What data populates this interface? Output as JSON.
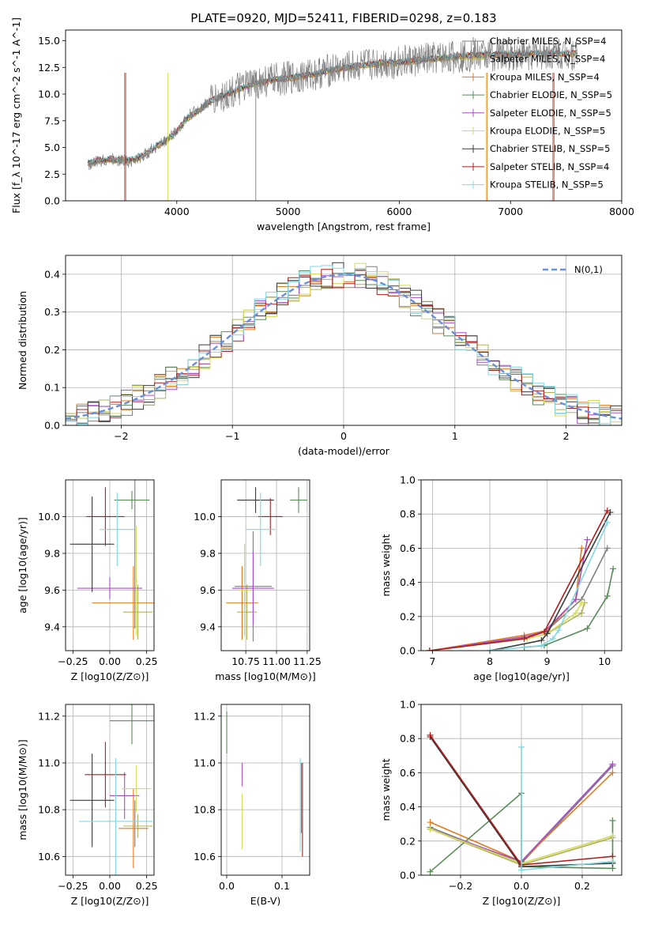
{
  "figure_title": "PLATE=0920, MJD=52411, FIBERID=0298, z=0.183",
  "series_styles": [
    {
      "name": "Chabrier MILES, N_SSP=4",
      "color": "#7f7f7f"
    },
    {
      "name": "Salpeter MILES, N_SSP=4",
      "color": "#b0b05a"
    },
    {
      "name": "Kroupa MILES, N_SSP=4",
      "color": "#e47a1f"
    },
    {
      "name": "Chabrier ELODIE, N_SSP=5",
      "color": "#5a8a5a"
    },
    {
      "name": "Salpeter ELODIE, N_SSP=5",
      "color": "#a64dc8"
    },
    {
      "name": "Kroupa ELODIE, N_SSP=5",
      "color": "#d4dc5a"
    },
    {
      "name": "Chabrier STELIB, N_SSP=5",
      "color": "#3a3a3a"
    },
    {
      "name": "Salpeter STELIB, N_SSP=4",
      "color": "#b01c1c"
    },
    {
      "name": "Kroupa STELIB, N_SSP=5",
      "color": "#7fd8e0"
    }
  ],
  "chart_data": [
    {
      "id": "spectrum",
      "type": "line",
      "title": "PLATE=0920, MJD=52411, FIBERID=0298, z=0.183",
      "xlabel": "wavelength [Angstrom, rest frame]",
      "ylabel": "Flux [f_λ 10^-17 erg cm^-2 s^-1 A^-1]",
      "xlim": [
        3000,
        8000
      ],
      "ylim": [
        0,
        16
      ],
      "xticks": [
        4000,
        5000,
        6000,
        7000,
        8000
      ],
      "yticks": [
        0.0,
        2.5,
        5.0,
        7.5,
        10.0,
        12.5,
        15.0
      ],
      "legend_position": "top-right",
      "grid": false,
      "x": [
        3200,
        3300,
        3400,
        3500,
        3600,
        3700,
        3800,
        3900,
        4000,
        4100,
        4200,
        4300,
        4400,
        4500,
        4600,
        4700,
        4800,
        4900,
        5000,
        5200,
        5400,
        5600,
        5800,
        6000,
        6200,
        6400,
        6600,
        6800,
        7000,
        7200,
        7400,
        7600
      ],
      "data_flux": [
        3.4,
        3.7,
        3.9,
        3.8,
        3.7,
        4.2,
        5.0,
        5.6,
        6.6,
        7.9,
        8.6,
        9.4,
        9.7,
        10.2,
        10.6,
        11.0,
        11.2,
        11.4,
        11.5,
        11.8,
        12.3,
        12.6,
        12.9,
        13.0,
        13.2,
        13.4,
        13.6,
        13.7,
        13.7,
        13.8,
        13.8,
        13.8
      ],
      "model_flux": [
        3.5,
        3.8,
        3.9,
        3.8,
        3.8,
        4.3,
        5.0,
        5.6,
        6.5,
        7.8,
        8.5,
        9.3,
        9.8,
        10.2,
        10.6,
        11.0,
        11.2,
        11.4,
        11.5,
        11.8,
        12.3,
        12.6,
        12.9,
        13.0,
        13.2,
        13.4,
        13.6,
        13.7,
        13.7,
        13.8,
        13.8,
        13.8
      ]
    },
    {
      "id": "residual_hist",
      "type": "line",
      "xlabel": "(data-model)/error",
      "ylabel": "Normed distribution",
      "xlim": [
        -2.5,
        2.5
      ],
      "ylim": [
        0,
        0.45
      ],
      "xticks": [
        -2,
        -1,
        0,
        1,
        2
      ],
      "yticks": [
        0.0,
        0.1,
        0.2,
        0.3,
        0.4
      ],
      "grid": true,
      "legend_position": "top-right",
      "reference_label": "N(0,1)",
      "reference_color": "#6a8fd8"
    },
    {
      "id": "age_vs_Z",
      "type": "scatter",
      "xlabel": "Z [log10(Z/Z⊙)]",
      "ylabel": "age  [log10(age/yr)]",
      "xlim": [
        -0.3,
        0.3
      ],
      "ylim": [
        9.27,
        10.2
      ],
      "xticks": [
        -0.25,
        0.0,
        0.25
      ],
      "xticklabels": [
        "−0.25",
        "0.00",
        "0.25"
      ],
      "yticks": [
        9.4,
        9.6,
        9.8,
        10.0
      ],
      "grid": true,
      "points": [
        {
          "s": 0,
          "x": 0.17,
          "y": 9.84,
          "xerr": 0.0,
          "yerr": 0.45
        },
        {
          "s": 1,
          "x": 0.19,
          "y": 9.48,
          "xerr": 0.1,
          "yerr": 0.15
        },
        {
          "s": 2,
          "x": 0.16,
          "y": 9.53,
          "xerr": 0.28,
          "yerr": 0.2
        },
        {
          "s": 3,
          "x": 0.15,
          "y": 10.09,
          "xerr": 0.12,
          "yerr": 0.05
        },
        {
          "s": 4,
          "x": 0.0,
          "y": 9.61,
          "xerr": 0.22,
          "yerr": 0.06
        },
        {
          "s": 5,
          "x": 0.18,
          "y": 9.65,
          "xerr": 0.01,
          "yerr": 0.3
        },
        {
          "s": 6,
          "x": -0.12,
          "y": 9.85,
          "xerr": 0.15,
          "yerr": 0.26
        },
        {
          "s": 7,
          "x": -0.03,
          "y": 10.0,
          "xerr": 0.13,
          "yerr": 0.16
        },
        {
          "s": 8,
          "x": 0.05,
          "y": 9.93,
          "xerr": 0.12,
          "yerr": 0.2
        }
      ]
    },
    {
      "id": "age_vs_mass",
      "type": "scatter",
      "xlabel": "mass [log10(M/M⊙)]",
      "ylabel": "",
      "xlim": [
        10.55,
        11.27
      ],
      "ylim": [
        9.27,
        10.2
      ],
      "xticks": [
        10.75,
        11.0,
        11.25
      ],
      "xticklabels": [
        "10.75",
        "11.00",
        "11.25"
      ],
      "yticks": [
        9.4,
        9.6,
        9.8,
        10.0
      ],
      "grid": true,
      "points": [
        {
          "s": 0,
          "x": 10.81,
          "y": 9.62,
          "xerr": 0.15,
          "yerr": 0.3
        },
        {
          "s": 1,
          "x": 10.76,
          "y": 9.48,
          "xerr": 0.08,
          "yerr": 0.15
        },
        {
          "s": 2,
          "x": 10.72,
          "y": 9.53,
          "xerr": 0.13,
          "yerr": 0.2
        },
        {
          "s": 3,
          "x": 11.18,
          "y": 10.09,
          "xerr": 0.07,
          "yerr": 0.07
        },
        {
          "s": 4,
          "x": 10.81,
          "y": 9.61,
          "xerr": 0.17,
          "yerr": 0.2
        },
        {
          "s": 5,
          "x": 10.74,
          "y": 9.6,
          "xerr": 0.05,
          "yerr": 0.25
        },
        {
          "s": 6,
          "x": 10.83,
          "y": 10.09,
          "xerr": 0.15,
          "yerr": 0.07
        },
        {
          "s": 7,
          "x": 10.95,
          "y": 10.0,
          "xerr": 0.1,
          "yerr": 0.1
        },
        {
          "s": 8,
          "x": 10.87,
          "y": 9.93,
          "xerr": 0.12,
          "yerr": 0.2
        }
      ]
    },
    {
      "id": "massweight_vs_age",
      "type": "line",
      "xlabel": "age  [log10(age/yr)]",
      "ylabel": "mass weight",
      "xlim": [
        6.8,
        10.3
      ],
      "ylim": [
        0,
        1.0
      ],
      "xticks": [
        7,
        8,
        9,
        10
      ],
      "yticks": [
        0.0,
        0.2,
        0.4,
        0.6,
        0.8,
        1.0
      ],
      "grid": true,
      "series": [
        {
          "s": 0,
          "x": [
            6.95,
            8.65,
            9.0,
            9.6,
            10.05
          ],
          "y": [
            0.0,
            0.08,
            0.12,
            0.3,
            0.6
          ]
        },
        {
          "s": 1,
          "x": [
            6.95,
            8.65,
            9.0,
            9.6,
            9.65
          ],
          "y": [
            0.0,
            0.07,
            0.1,
            0.22,
            0.28
          ]
        },
        {
          "s": 2,
          "x": [
            6.95,
            8.6,
            9.0,
            9.5,
            9.6
          ],
          "y": [
            0.0,
            0.09,
            0.12,
            0.3,
            0.6
          ]
        },
        {
          "s": 3,
          "x": [
            8.6,
            8.95,
            9.7,
            10.05,
            10.15
          ],
          "y": [
            0.02,
            0.03,
            0.13,
            0.32,
            0.48
          ]
        },
        {
          "s": 4,
          "x": [
            6.95,
            8.6,
            8.95,
            9.5,
            9.7
          ],
          "y": [
            0.0,
            0.08,
            0.11,
            0.3,
            0.65
          ]
        },
        {
          "s": 5,
          "x": [
            6.95,
            8.65,
            9.0,
            9.5,
            9.6
          ],
          "y": [
            0.0,
            0.07,
            0.1,
            0.22,
            0.28
          ]
        },
        {
          "s": 6,
          "x": [
            8.0,
            8.9,
            9.0,
            10.1
          ],
          "y": [
            0.0,
            0.06,
            0.1,
            0.81
          ]
        },
        {
          "s": 7,
          "x": [
            6.95,
            8.6,
            8.95,
            10.05
          ],
          "y": [
            0.0,
            0.07,
            0.11,
            0.82
          ]
        },
        {
          "s": 8,
          "x": [
            8.0,
            8.9,
            9.1,
            9.2,
            10.05
          ],
          "y": [
            0.0,
            0.03,
            0.07,
            0.12,
            0.75
          ]
        }
      ]
    },
    {
      "id": "mass_vs_Z",
      "type": "scatter",
      "xlabel": "Z [log10(Z/Z⊙)]",
      "ylabel": "mass [log10(M/M⊙)]",
      "xlim": [
        -0.3,
        0.3
      ],
      "ylim": [
        10.52,
        11.25
      ],
      "xticks": [
        -0.25,
        0.0,
        0.25
      ],
      "xticklabels": [
        "−0.25",
        "0.00",
        "0.25"
      ],
      "yticks": [
        10.6,
        10.8,
        11.0,
        11.2
      ],
      "grid": true,
      "points": [
        {
          "s": 0,
          "x": 0.17,
          "y": 10.74,
          "xerr": 0.0,
          "yerr": 0.1
        },
        {
          "s": 1,
          "x": 0.19,
          "y": 10.73,
          "xerr": 0.1,
          "yerr": 0.05
        },
        {
          "s": 2,
          "x": 0.16,
          "y": 10.72,
          "xerr": 0.1,
          "yerr": 0.17
        },
        {
          "s": 3,
          "x": 0.15,
          "y": 11.18,
          "xerr": 0.15,
          "yerr": 0.1
        },
        {
          "s": 4,
          "x": 0.1,
          "y": 10.86,
          "xerr": 0.1,
          "yerr": 0.1
        },
        {
          "s": 5,
          "x": 0.18,
          "y": 10.89,
          "xerr": 0.1,
          "yerr": 0.1
        },
        {
          "s": 6,
          "x": -0.12,
          "y": 10.84,
          "xerr": 0.15,
          "yerr": 0.2
        },
        {
          "s": 7,
          "x": -0.03,
          "y": 10.95,
          "xerr": 0.14,
          "yerr": 0.14
        },
        {
          "s": 8,
          "x": 0.04,
          "y": 10.75,
          "xerr": 0.25,
          "yerr": 0.27
        }
      ]
    },
    {
      "id": "mass_vs_EBV",
      "type": "scatter",
      "xlabel": "E(B-V)",
      "ylabel": "",
      "xlim": [
        -0.01,
        0.15
      ],
      "ylim": [
        10.52,
        11.25
      ],
      "xticks": [
        0.0,
        0.1
      ],
      "xticklabels": [
        "0.0",
        "0.1"
      ],
      "yticks": [
        10.6,
        10.8,
        11.0,
        11.2
      ],
      "grid": true,
      "points": [
        {
          "s": 0,
          "x": 0.135,
          "y": 10.85,
          "xerr": 0.0,
          "yerr": 0.15
        },
        {
          "s": 3,
          "x": 0.0,
          "y": 11.13,
          "xerr": 0.0,
          "yerr": 0.09
        },
        {
          "s": 4,
          "x": 0.028,
          "y": 10.95,
          "xerr": 0.0,
          "yerr": 0.05
        },
        {
          "s": 5,
          "x": 0.028,
          "y": 10.75,
          "xerr": 0.0,
          "yerr": 0.12
        },
        {
          "s": 7,
          "x": 0.137,
          "y": 10.8,
          "xerr": 0.0,
          "yerr": 0.2
        },
        {
          "s": 8,
          "x": 0.133,
          "y": 10.82,
          "xerr": 0.0,
          "yerr": 0.2
        }
      ]
    },
    {
      "id": "massweight_vs_Z",
      "type": "line",
      "xlabel": "Z [log10(Z/Z⊙)]",
      "ylabel": "mass weight",
      "xlim": [
        -0.33,
        0.33
      ],
      "ylim": [
        0,
        1.0
      ],
      "xticks": [
        -0.2,
        0.0,
        0.2
      ],
      "xticklabels": [
        "−0.2",
        "0.0",
        "0.2"
      ],
      "yticks": [
        0.0,
        0.2,
        0.4,
        0.6,
        0.8,
        1.0
      ],
      "grid": true,
      "series": [
        {
          "s": 0,
          "x": [
            -0.3,
            0.0,
            0.3
          ],
          "y": [
            0.28,
            0.07,
            0.64
          ]
        },
        {
          "s": 1,
          "x": [
            -0.3,
            0.0,
            0.3
          ],
          "y": [
            0.27,
            0.06,
            0.22
          ]
        },
        {
          "s": 2,
          "x": [
            -0.3,
            0.0,
            0.3
          ],
          "y": [
            0.31,
            0.08,
            0.6
          ]
        },
        {
          "s": 3,
          "x": [
            -0.3,
            0.0,
            0.0,
            0.3,
            0.3
          ],
          "y": [
            0.02,
            0.48,
            0.05,
            0.04,
            0.32
          ]
        },
        {
          "s": 4,
          "x": [
            -0.3,
            0.0,
            0.3
          ],
          "y": [
            0.27,
            0.08,
            0.65
          ]
        },
        {
          "s": 5,
          "x": [
            -0.3,
            0.0,
            0.3
          ],
          "y": [
            0.27,
            0.07,
            0.23
          ]
        },
        {
          "s": 6,
          "x": [
            -0.3,
            0.0,
            0.3
          ],
          "y": [
            0.81,
            0.05,
            0.07
          ]
        },
        {
          "s": 7,
          "x": [
            -0.3,
            0.0,
            0.3
          ],
          "y": [
            0.82,
            0.06,
            0.11
          ]
        },
        {
          "s": 8,
          "x": [
            0.0,
            0.0,
            0.3
          ],
          "y": [
            0.75,
            0.03,
            0.08
          ]
        }
      ]
    }
  ]
}
